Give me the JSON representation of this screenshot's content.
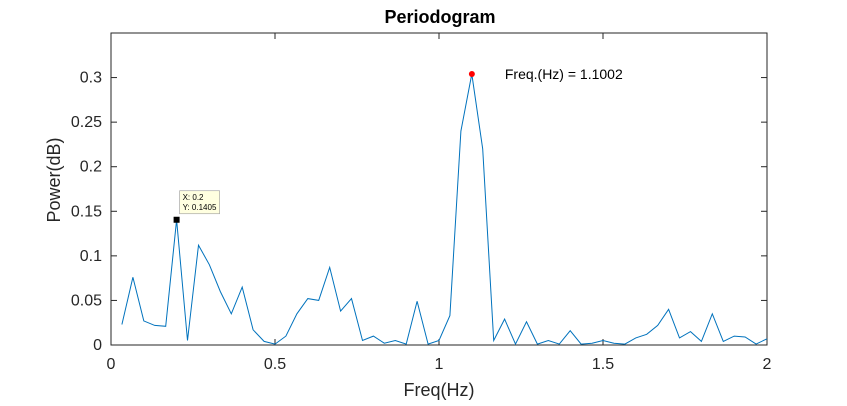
{
  "chart_data": {
    "type": "line",
    "title": "Periodogram",
    "xlabel": "Freq(Hz)",
    "ylabel": "Power(dB)",
    "xlim": [
      0,
      2
    ],
    "ylim": [
      0,
      0.35
    ],
    "xticks": [
      0,
      0.5,
      1,
      1.5,
      2
    ],
    "xtick_labels": [
      "0",
      "0.5",
      "1",
      "1.5",
      "2"
    ],
    "yticks": [
      0,
      0.05,
      0.1,
      0.15,
      0.2,
      0.25,
      0.3
    ],
    "ytick_labels": [
      "0",
      "0.05",
      "0.1",
      "0.15",
      "0.2",
      "0.25",
      "0.3"
    ],
    "grid": false,
    "line_color": "#0072BD",
    "series": [
      {
        "x": [
          0.0333,
          0.0667,
          0.1,
          0.1333,
          0.1667,
          0.2,
          0.2333,
          0.2667,
          0.3,
          0.3333,
          0.3667,
          0.4,
          0.4333,
          0.4667,
          0.5,
          0.5333,
          0.5667,
          0.6,
          0.6333,
          0.6667,
          0.7,
          0.7333,
          0.7667,
          0.8,
          0.8333,
          0.8667,
          0.9,
          0.9333,
          0.9667,
          1.0,
          1.0333,
          1.0667,
          1.1,
          1.1333,
          1.1667,
          1.2,
          1.2333,
          1.2667,
          1.3,
          1.3333,
          1.3667,
          1.4,
          1.4333,
          1.4667,
          1.5,
          1.5333,
          1.5667,
          1.6,
          1.6333,
          1.6667,
          1.7,
          1.7333,
          1.7667,
          1.8,
          1.8333,
          1.8667,
          1.9,
          1.9333,
          1.9667,
          2.0
        ],
        "y": [
          0.023,
          0.076,
          0.027,
          0.022,
          0.021,
          0.1405,
          0.005,
          0.112,
          0.09,
          0.06,
          0.035,
          0.065,
          0.017,
          0.004,
          0.001,
          0.01,
          0.035,
          0.052,
          0.05,
          0.087,
          0.038,
          0.052,
          0.005,
          0.01,
          0.002,
          0.005,
          0.001,
          0.049,
          0.001,
          0.005,
          0.033,
          0.24,
          0.304,
          0.22,
          0.005,
          0.029,
          0.001,
          0.026,
          0.001,
          0.005,
          0.001,
          0.016,
          0.001,
          0.002,
          0.005,
          0.002,
          0.001,
          0.008,
          0.012,
          0.022,
          0.04,
          0.008,
          0.015,
          0.004,
          0.035,
          0.004,
          0.01,
          0.009,
          0.001,
          0.007
        ]
      }
    ],
    "datatip": {
      "x": 0.2,
      "y": 0.1405,
      "line1": "X: 0.2",
      "line2": "Y: 0.1405",
      "marker_color": "#000000",
      "box_color": "#ffffe0"
    },
    "peak_marker": {
      "x": 1.1002,
      "y": 0.304,
      "color": "#ff0000",
      "label": "Freq.(Hz) = 1.1002"
    }
  }
}
